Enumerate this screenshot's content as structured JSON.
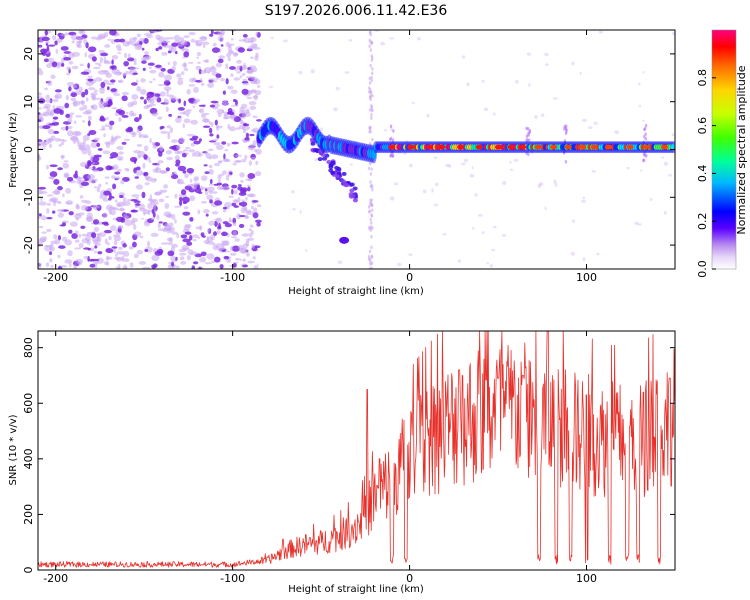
{
  "title": "S197.2026.006.11.42.E36",
  "colors": {
    "snr_line": "#e8302a",
    "spectro_faint": "#c9a6f2",
    "spectro_mid": "#7a28e0",
    "axis": "#000000"
  },
  "chart_data": [
    {
      "type": "heatmap",
      "xlabel": "Height of straight line (km)",
      "ylabel": "Frequency (Hz)",
      "xlim": [
        -210,
        150
      ],
      "ylim": [
        -25,
        25
      ],
      "x_ticks": [
        -200,
        -100,
        0,
        100
      ],
      "x_tick_labels": [
        "-200",
        "-100",
        "0",
        "100"
      ],
      "y_ticks": [
        -20,
        -10,
        0,
        10,
        20
      ],
      "y_tick_labels": [
        "-20",
        "-10",
        "0",
        "10",
        "20"
      ],
      "colorbar": {
        "label": "Normalized spectral amplitude",
        "range": [
          0.0,
          1.0
        ],
        "ticks": [
          0.0,
          0.2,
          0.4,
          0.6,
          0.8
        ],
        "tick_labels": [
          "0.0",
          "0.2",
          "0.4",
          "0.6",
          "0.8"
        ],
        "colormap": [
          "#ffffff",
          "#d9c2f5",
          "#a060ee",
          "#5a00ff",
          "#0000ff",
          "#00c8ff",
          "#00ff80",
          "#80ff00",
          "#ffff00",
          "#ff8000",
          "#ff0000",
          "#ff0080"
        ]
      },
      "features": {
        "noise_region_x": [
          -210,
          -85
        ],
        "signal_band_x": [
          -85,
          150
        ],
        "signal_band_freq": 0.5,
        "peak_amplitude_region_x": [
          -10,
          70
        ],
        "vertical_streaks_x": [
          -22,
          -10,
          67,
          88,
          133
        ]
      }
    },
    {
      "type": "line",
      "xlabel": "Height of straight line (km)",
      "ylabel": "SNR (10 * v/v)",
      "xlim": [
        -210,
        150
      ],
      "ylim": [
        0,
        860
      ],
      "x_ticks": [
        -200,
        -100,
        0,
        100
      ],
      "x_tick_labels": [
        "-200",
        "-100",
        "0",
        "100"
      ],
      "y_ticks": [
        0,
        200,
        400,
        600,
        800
      ],
      "y_tick_labels": [
        "0",
        "200",
        "400",
        "600",
        "800"
      ],
      "series": [
        {
          "name": "SNR",
          "envelope": {
            "x": [
              -210,
              -100,
              -80,
              -70,
              -60,
              -50,
              -40,
              -30,
              -25,
              -20,
              -10,
              0,
              10,
              20,
              30,
              40,
              50,
              60,
              70,
              75,
              80,
              90,
              100,
              110,
              120,
              130,
              140,
              150
            ],
            "y": [
              20,
              20,
              35,
              70,
              90,
              100,
              120,
              160,
              200,
              260,
              330,
              420,
              470,
              510,
              540,
              560,
              570,
              580,
              560,
              540,
              520,
              500,
              490,
              470,
              470,
              470,
              500,
              560
            ]
          },
          "spikes": [
            {
              "x": -24,
              "y": 650
            },
            {
              "x": -17,
              "y": 400
            },
            {
              "x": 28,
              "y": 720
            },
            {
              "x": 30,
              "y": 700
            },
            {
              "x": 50,
              "y": 690
            },
            {
              "x": 64,
              "y": 700
            },
            {
              "x": 78,
              "y": 860
            },
            {
              "x": 100,
              "y": 630
            },
            {
              "x": 132,
              "y": 640
            },
            {
              "x": 147,
              "y": 690
            }
          ],
          "dropouts_x": [
            -10,
            -2,
            73,
            83,
            91,
            100,
            113,
            123,
            129,
            141
          ]
        }
      ]
    }
  ]
}
